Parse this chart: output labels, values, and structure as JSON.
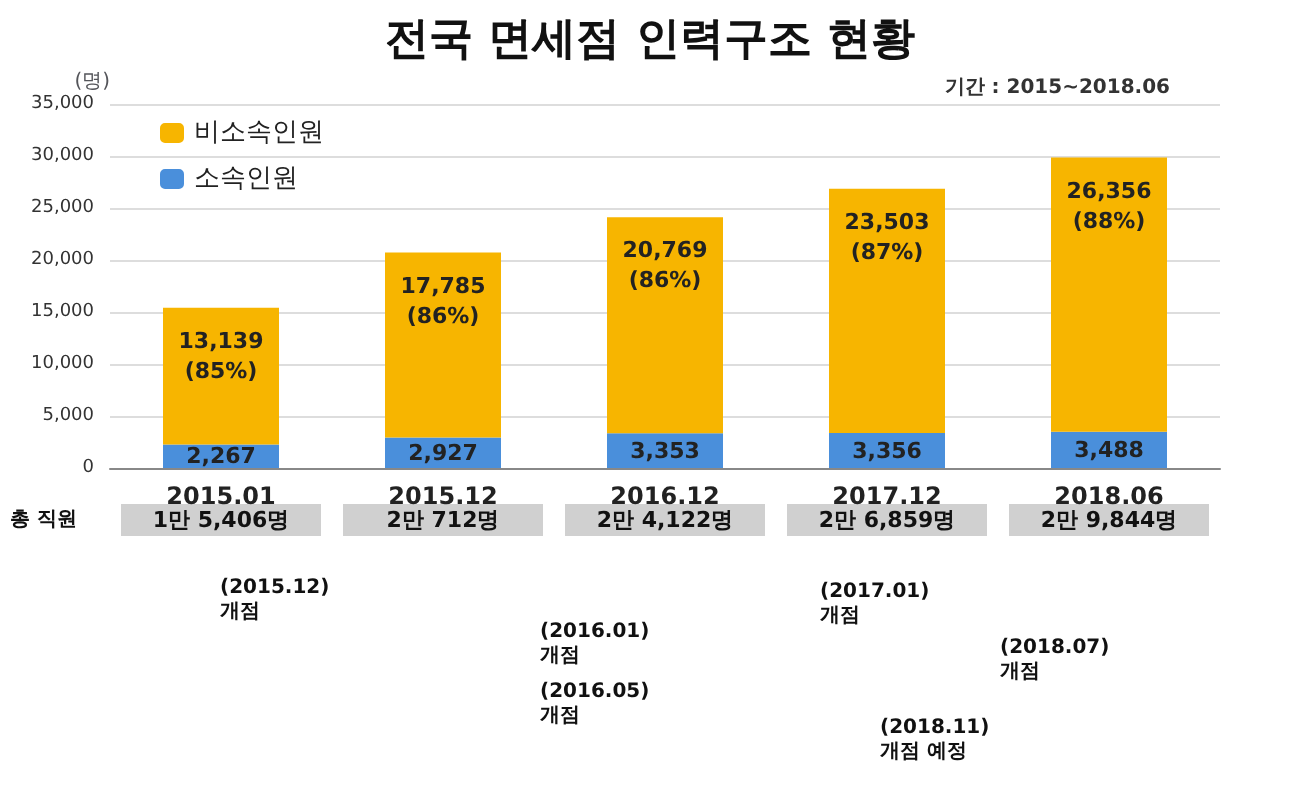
{
  "chart_data": {
    "type": "bar",
    "title": "전국 면세점 인력구조 현황",
    "subtitle": "기간 : 2015~2018.06",
    "ylabel": "(명)",
    "categories": [
      "2015.01",
      "2015.12",
      "2016.12",
      "2017.12",
      "2018.06"
    ],
    "stacked": true,
    "ylim": [
      0,
      35000
    ],
    "yticks": [
      0,
      {
        "value": 5000,
        "label": "5,000"
      },
      {
        "value": 10000,
        "label": "10,000"
      },
      {
        "value": 15000,
        "label": "15,000"
      },
      {
        "value": 20000,
        "label": "20,000"
      },
      {
        "value": 25000,
        "label": "25,000"
      },
      {
        "value": 30000,
        "label": "30,000"
      },
      {
        "value": 35000,
        "label": "35,000"
      }
    ],
    "grid": "y",
    "legend": "top left",
    "series": [
      {
        "name": "소속인원",
        "color": "#4a8fdb",
        "values": [
          2267,
          2927,
          3353,
          3356,
          3488
        ],
        "value_labels": [
          "2,267",
          "2,927",
          "3,353",
          "3,356",
          "3,488"
        ]
      },
      {
        "name": "비소속인원",
        "color": "#f7b500",
        "values": [
          13139,
          17785,
          20769,
          23503,
          26356
        ],
        "value_labels": [
          "13,139\n(85%)",
          "17,785\n(86%)",
          "20,769\n(86%)",
          "23,503\n(87%)",
          "26,356\n(88%)"
        ]
      }
    ],
    "totals": [
      "1만 5,406명",
      "2만 712명",
      "2만 4,122명",
      "2만 6,859명",
      "2만 9,844명"
    ],
    "annotations": [
      "총 직원",
      "(2015.12)\n개점",
      "(2016.01)\n개점",
      "(2016.05)\n개점",
      "(2017.01)\n개점",
      "(2018.07)\n개점",
      "(2018.11)\n개점 예정"
    ]
  }
}
